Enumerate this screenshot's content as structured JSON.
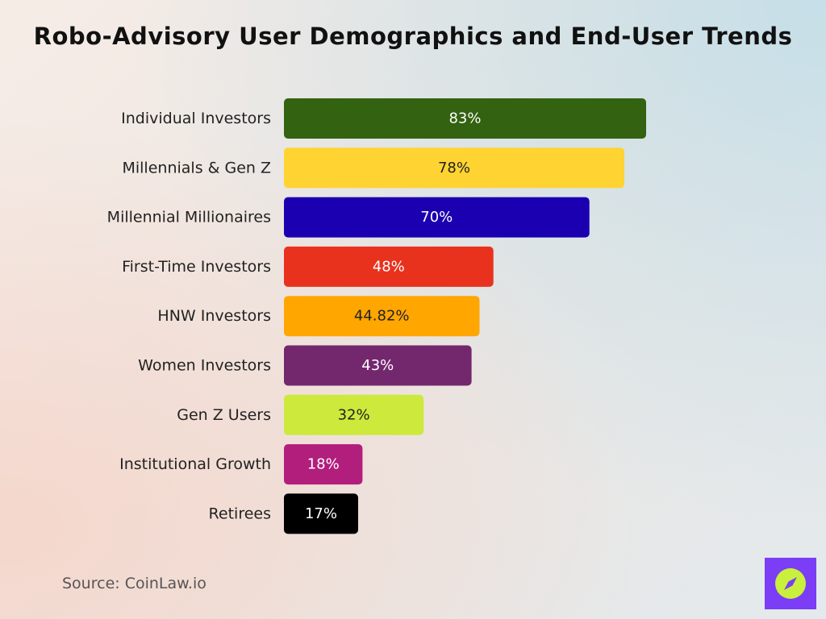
{
  "chart_data": {
    "type": "bar",
    "orientation": "horizontal",
    "title": "Robo-Advisory User Demographics and End-User Trends",
    "categories": [
      "Individual Investors",
      "Millennials & Gen Z",
      "Millennial Millionaires",
      "First-Time Investors",
      "HNW Investors",
      "Women Investors",
      "Gen Z Users",
      "Institutional Growth",
      "Retirees"
    ],
    "values": [
      83,
      78,
      70,
      48,
      44.82,
      43,
      32,
      18,
      17
    ],
    "value_labels": [
      "83%",
      "78%",
      "70%",
      "48%",
      "44.82%",
      "43%",
      "32%",
      "18%",
      "17%"
    ],
    "colors": [
      "#336210",
      "#ffd332",
      "#1a00b0",
      "#e8321e",
      "#ffa600",
      "#73286e",
      "#cde93b",
      "#b21e7c",
      "#000000"
    ],
    "label_colors": [
      "#ffffff",
      "#222222",
      "#ffffff",
      "#ffffff",
      "#222222",
      "#ffffff",
      "#222222",
      "#ffffff",
      "#ffffff"
    ],
    "xlim": [
      0,
      83
    ],
    "grid": false,
    "legend": "none"
  },
  "footer": {
    "source": "Source: CoinLaw.io"
  },
  "brand": {
    "logo_icon": "compass-icon",
    "logo_color": "#7b3df5",
    "mark_color": "#c8f03c"
  }
}
